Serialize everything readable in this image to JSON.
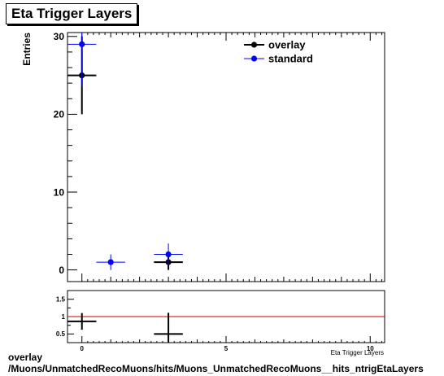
{
  "chart_data": [
    {
      "type": "scatter",
      "title": "Eta Trigger Layers",
      "ylabel": "Entries",
      "xlabel": "Eta Trigger Layers",
      "xlim": [
        -0.5,
        10.5
      ],
      "ylim": [
        -1.5,
        30.5
      ],
      "x_ticks": [
        0,
        5,
        10
      ],
      "y_ticks": [
        0,
        10,
        20,
        30
      ],
      "legend_position": "top-right",
      "series": [
        {
          "name": "overlay",
          "color": "#000000",
          "points": [
            {
              "x": 0,
              "y": 25,
              "xerr": 0.5,
              "yerr": 5.0
            },
            {
              "x": 3,
              "y": 1,
              "xerr": 0.5,
              "yerr": 1.0
            }
          ]
        },
        {
          "name": "standard",
          "color": "#0000ff",
          "points": [
            {
              "x": 0,
              "y": 29,
              "xerr": 0.5,
              "yerr": 5.4
            },
            {
              "x": 1,
              "y": 1,
              "xerr": 0.5,
              "yerr": 1.0
            },
            {
              "x": 3,
              "y": 2,
              "xerr": 0.5,
              "yerr": 1.4
            }
          ]
        }
      ]
    },
    {
      "type": "scatter",
      "title": "",
      "xlim": [
        -0.5,
        10.5
      ],
      "ylim": [
        0.25,
        1.75
      ],
      "x_ticks": [
        0,
        5,
        10
      ],
      "y_ticks": [
        0.5,
        1,
        1.5
      ],
      "y_tick_labels": [
        "0.5",
        "1",
        "1.5"
      ],
      "reference_line": {
        "y": 1,
        "color": "#cc0000"
      },
      "series": [
        {
          "name": "ratio",
          "color": "#000000",
          "points": [
            {
              "x": 0,
              "y": 0.862,
              "xerr": 0.5,
              "yerr": 0.24
            },
            {
              "x": 3,
              "y": 0.5,
              "xerr": 0.5,
              "yerr": 0.61
            }
          ]
        }
      ]
    }
  ],
  "footer": {
    "line1": "overlay",
    "line2": "/Muons/UnmatchedRecoMuons/hits/Muons_UnmatchedRecoMuons__hits_ntrigEtaLayers"
  }
}
